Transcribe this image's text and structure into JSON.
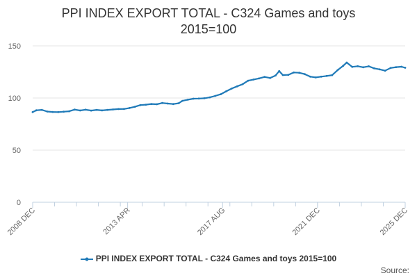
{
  "chart_data": {
    "type": "line",
    "title_line1": "PPI INDEX EXPORT TOTAL - C324 Games and toys",
    "title_line2": "2015=100",
    "xlabel": "",
    "ylabel": "",
    "ylim": [
      0,
      150
    ],
    "yticks": [
      0,
      50,
      100,
      150
    ],
    "xlim": [
      "2008-12",
      "2025-12"
    ],
    "xticks": [
      "2008 DEC",
      "2013 APR",
      "2017 AUG",
      "2021 DEC",
      "2025 DEC"
    ],
    "grid": "horizontal",
    "legend_position": "bottom",
    "series": [
      {
        "name": "PPI INDEX EXPORT TOTAL - C324 Games and toys 2015=100",
        "color": "#1f7ab8",
        "points": [
          [
            "2008-12",
            86.5
          ],
          [
            "2009-02",
            88.2
          ],
          [
            "2009-05",
            88.6
          ],
          [
            "2009-08",
            87.0
          ],
          [
            "2009-11",
            86.6
          ],
          [
            "2010-02",
            86.5
          ],
          [
            "2010-05",
            86.9
          ],
          [
            "2010-08",
            87.3
          ],
          [
            "2010-11",
            88.9
          ],
          [
            "2011-02",
            88.0
          ],
          [
            "2011-05",
            88.8
          ],
          [
            "2011-08",
            87.9
          ],
          [
            "2011-11",
            88.6
          ],
          [
            "2012-02",
            88.1
          ],
          [
            "2012-05",
            88.6
          ],
          [
            "2012-08",
            89.0
          ],
          [
            "2012-11",
            89.4
          ],
          [
            "2013-02",
            89.5
          ],
          [
            "2013-05",
            90.4
          ],
          [
            "2013-08",
            91.6
          ],
          [
            "2013-11",
            93.2
          ],
          [
            "2014-02",
            93.6
          ],
          [
            "2014-05",
            94.3
          ],
          [
            "2014-08",
            94.0
          ],
          [
            "2014-11",
            95.2
          ],
          [
            "2015-02",
            94.7
          ],
          [
            "2015-05",
            94.2
          ],
          [
            "2015-08",
            95.0
          ],
          [
            "2015-10",
            97.3
          ],
          [
            "2016-01",
            98.4
          ],
          [
            "2016-04",
            99.3
          ],
          [
            "2016-07",
            99.5
          ],
          [
            "2016-10",
            99.7
          ],
          [
            "2017-01",
            100.6
          ],
          [
            "2017-04",
            102.0
          ],
          [
            "2017-07",
            103.6
          ],
          [
            "2017-10",
            106.4
          ],
          [
            "2018-01",
            109.1
          ],
          [
            "2018-04",
            111.2
          ],
          [
            "2018-07",
            113.3
          ],
          [
            "2018-10",
            116.6
          ],
          [
            "2019-01",
            117.7
          ],
          [
            "2019-04",
            118.8
          ],
          [
            "2019-07",
            120.2
          ],
          [
            "2019-10",
            119.2
          ],
          [
            "2020-01",
            121.6
          ],
          [
            "2020-03",
            125.8
          ],
          [
            "2020-05",
            122.0
          ],
          [
            "2020-08",
            122.2
          ],
          [
            "2020-11",
            124.5
          ],
          [
            "2021-02",
            124.2
          ],
          [
            "2021-05",
            122.9
          ],
          [
            "2021-08",
            120.5
          ],
          [
            "2021-11",
            119.7
          ],
          [
            "2022-02",
            120.5
          ],
          [
            "2022-05",
            121.1
          ],
          [
            "2022-08",
            121.9
          ],
          [
            "2022-11",
            126.7
          ],
          [
            "2023-02",
            130.9
          ],
          [
            "2023-04",
            134.0
          ],
          [
            "2023-07",
            129.9
          ],
          [
            "2023-10",
            130.5
          ],
          [
            "2024-01",
            129.5
          ],
          [
            "2024-04",
            130.4
          ],
          [
            "2024-07",
            128.5
          ],
          [
            "2024-10",
            127.5
          ],
          [
            "2025-01",
            126.2
          ],
          [
            "2025-04",
            128.8
          ],
          [
            "2025-07",
            129.6
          ],
          [
            "2025-10",
            130.0
          ],
          [
            "2025-12",
            129.0
          ]
        ]
      }
    ]
  },
  "footer": {
    "source_label": "Source:"
  }
}
